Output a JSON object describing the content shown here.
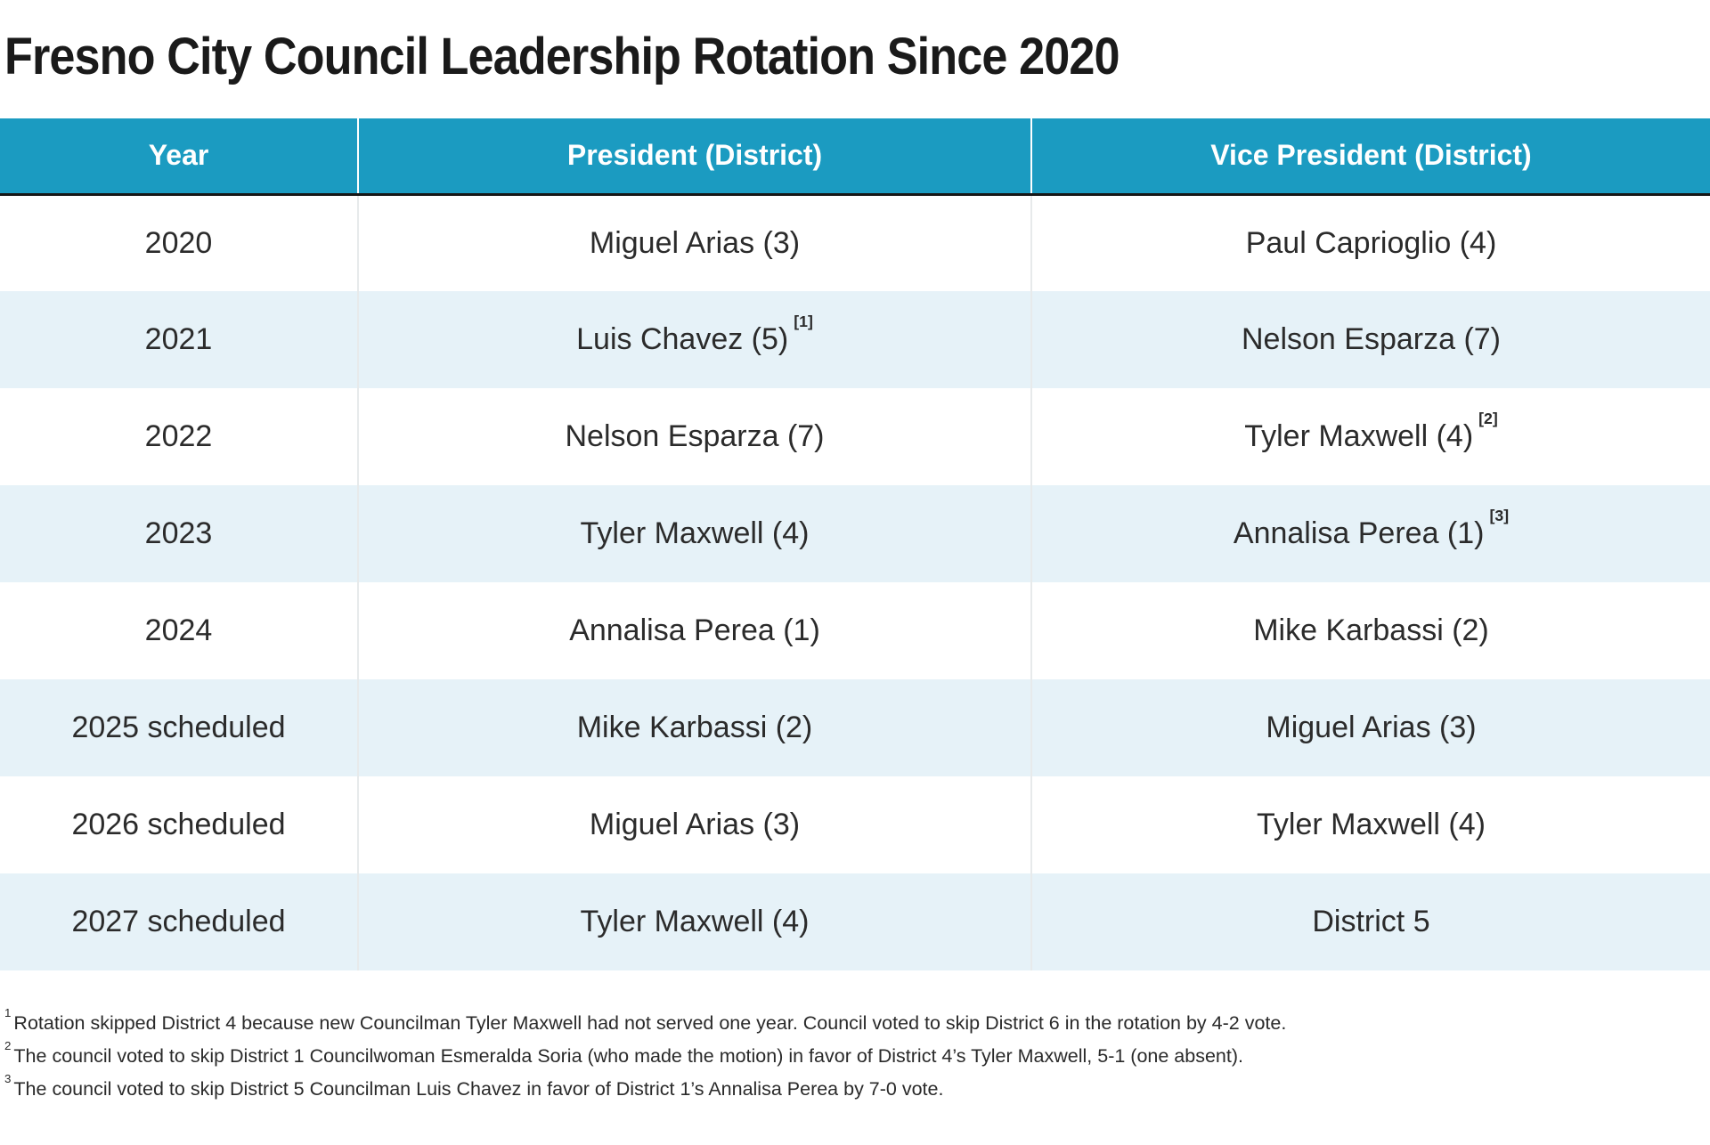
{
  "page_title": "Fresno City Council Leadership Rotation Since 2020",
  "colors": {
    "header_bg": "#1b9bc1",
    "header_text": "#ffffff",
    "row_bg": "#ffffff",
    "row_alt_bg": "#e6f2f8",
    "body_text": "#2b2b2b",
    "title_text": "#1a1a1a",
    "header_border": "#161616"
  },
  "chart_data": {
    "type": "table",
    "title": "Fresno City Council Leadership Rotation Since 2020",
    "columns": [
      "Year",
      "President (District)",
      "Vice President (District)"
    ],
    "rows": [
      {
        "year": "2020",
        "president": "Miguel Arias (3)",
        "president_note": "",
        "vice_president": "Paul Caprioglio (4)",
        "vice_president_note": ""
      },
      {
        "year": "2021",
        "president": "Luis Chavez (5)",
        "president_note": "[1]",
        "vice_president": "Nelson Esparza (7)",
        "vice_president_note": ""
      },
      {
        "year": "2022",
        "president": "Nelson Esparza (7)",
        "president_note": "",
        "vice_president": "Tyler Maxwell (4)",
        "vice_president_note": "[2]"
      },
      {
        "year": "2023",
        "president": "Tyler Maxwell (4)",
        "president_note": "",
        "vice_president": "Annalisa Perea (1)",
        "vice_president_note": "[3]"
      },
      {
        "year": "2024",
        "president": "Annalisa Perea (1)",
        "president_note": "",
        "vice_president": "Mike Karbassi (2)",
        "vice_president_note": ""
      },
      {
        "year": "2025 scheduled",
        "president": "Mike Karbassi (2)",
        "president_note": "",
        "vice_president": "Miguel Arias (3)",
        "vice_president_note": ""
      },
      {
        "year": "2026 scheduled",
        "president": "Miguel Arias (3)",
        "president_note": "",
        "vice_president": "Tyler Maxwell (4)",
        "vice_president_note": ""
      },
      {
        "year": "2027 scheduled",
        "president": "Tyler Maxwell (4)",
        "president_note": "",
        "vice_president": "District 5",
        "vice_president_note": ""
      }
    ],
    "footnotes": [
      {
        "marker": "1",
        "text": "Rotation skipped District 4 because new Councilman Tyler Maxwell had not served one year. Council voted to skip District 6 in the rotation by 4-2 vote."
      },
      {
        "marker": "2",
        "text": "The council voted to skip District 1 Councilwoman Esmeralda Soria (who made the motion) in favor of District 4’s Tyler Maxwell, 5-1 (one absent)."
      },
      {
        "marker": "3",
        "text": "The council voted to skip District 5 Councilman Luis Chavez in favor of District 1’s Annalisa Perea by 7-0 vote."
      }
    ]
  }
}
